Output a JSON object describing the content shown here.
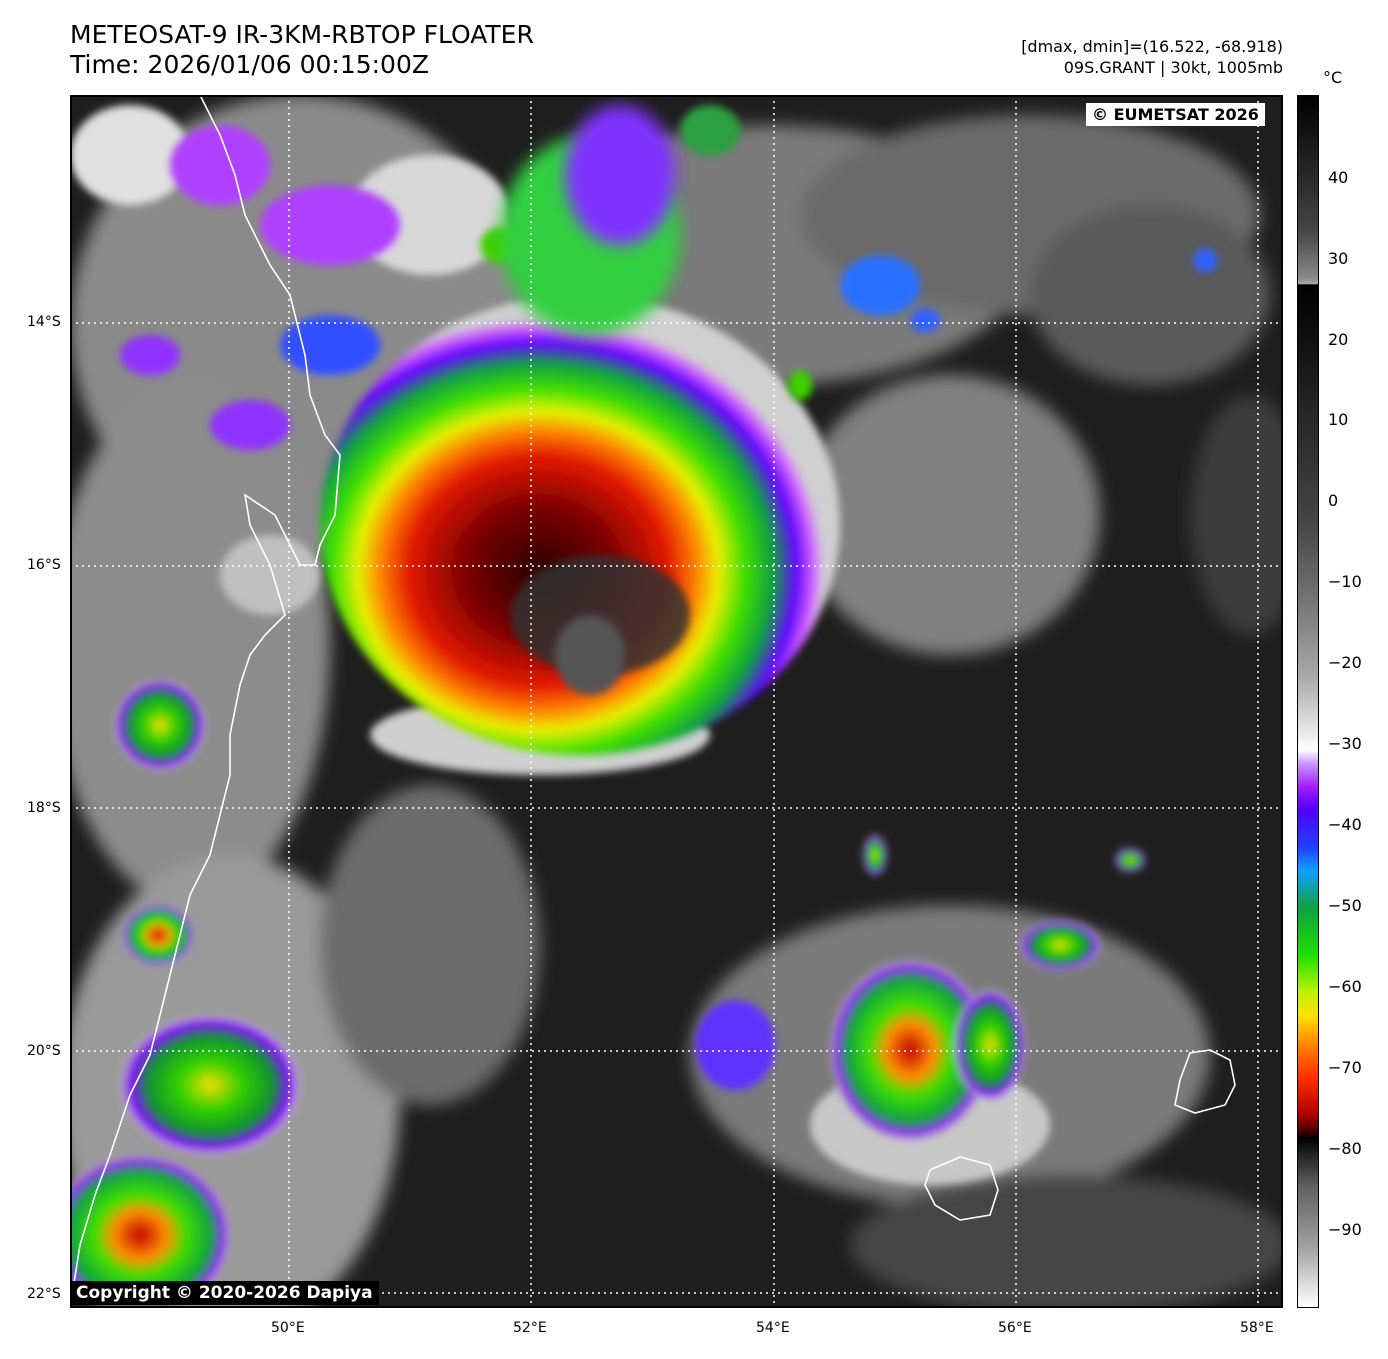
{
  "header": {
    "title_line1": "METEOSAT-9 IR-3KM-RBTOP FLOATER",
    "title_line2": "Time: 2026/01/06 00:15:00Z",
    "dminmax": "[dmax, dmin]=(16.522, -68.918)",
    "storm": "09S.GRANT | 30kt, 1005mb"
  },
  "credits": {
    "eumetsat": "© EUMETSAT 2026",
    "copyright": "Copyright © 2020-2026 Dapiya"
  },
  "axes": {
    "lat_labels": [
      "14°S",
      "16°S",
      "18°S",
      "20°S",
      "22°S"
    ],
    "lon_labels": [
      "50°E",
      "52°E",
      "54°E",
      "56°E",
      "58°E"
    ],
    "lat_values": [
      -14,
      -16,
      -18,
      -20,
      -22
    ],
    "lon_values": [
      50,
      52,
      54,
      56,
      58
    ],
    "lon_range": [
      48.2,
      58.2
    ],
    "lat_range": [
      -12.1,
      -22.1
    ]
  },
  "colorbar": {
    "unit": "°C",
    "labels": [
      "40",
      "30",
      "20",
      "10",
      "0",
      "−10",
      "−20",
      "−30",
      "−40",
      "−50",
      "−60",
      "−70",
      "−80",
      "−90"
    ],
    "values": [
      40,
      30,
      20,
      10,
      0,
      -10,
      -20,
      -30,
      -40,
      -50,
      -60,
      -70,
      -80,
      -90
    ],
    "range": [
      -100,
      50
    ]
  },
  "colors": {
    "ocean": "#1c1c1c",
    "coastline": "#ffffff",
    "grid": "#ffffff"
  }
}
